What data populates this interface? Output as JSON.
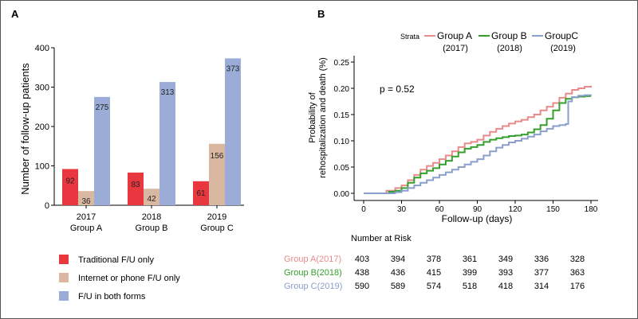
{
  "panel_a": {
    "label": "A",
    "chart_data": {
      "type": "bar",
      "ylabel": "Number of follow-up patients",
      "ylim": [
        0,
        400
      ],
      "yticks": [
        0,
        100,
        200,
        300,
        400
      ],
      "categories": [
        {
          "line1": "2017",
          "line2": "Group A"
        },
        {
          "line1": "2018",
          "line2": "Group B"
        },
        {
          "line1": "2019",
          "line2": "Group C"
        }
      ],
      "series": [
        {
          "name": "Traditional F/U only",
          "color": "#e8373f",
          "values": [
            92,
            83,
            61
          ]
        },
        {
          "name": "Internet or phone F/U only",
          "color": "#d9b8a2",
          "values": [
            36,
            42,
            156
          ]
        },
        {
          "name": "F/U in both forms",
          "color": "#9badd6",
          "values": [
            275,
            313,
            373
          ]
        }
      ],
      "legend": [
        {
          "label": "Traditional F/U only",
          "color": "#e8373f"
        },
        {
          "label": "Internet or phone F/U only",
          "color": "#d9b8a2"
        },
        {
          "label": "F/U in both forms",
          "color": "#9badd6"
        }
      ]
    }
  },
  "panel_b": {
    "label": "B",
    "chart_data": {
      "type": "line",
      "ylabel_line1": "Probability of",
      "ylabel_line2": "rehospitalization and death (%)",
      "xlabel": "Follow-up (days)",
      "xlim": [
        0,
        180
      ],
      "ylim": [
        0,
        0.25
      ],
      "xticks": [
        "0",
        "30",
        "60",
        "90",
        "120",
        "150",
        "180"
      ],
      "yticks": [
        "0.00",
        "0.05",
        "0.10",
        "0.15",
        "0.20",
        "0.25"
      ],
      "annotation": "p = 0.52",
      "strata_title": "Strata",
      "strata": [
        {
          "name": "Group A",
          "year": "(2017)",
          "color": "#e88a8a"
        },
        {
          "name": "Group B",
          "year": "(2018)",
          "color": "#33a02c"
        },
        {
          "name": "GroupC",
          "year": "(2019)",
          "color": "#8a9fcc"
        }
      ],
      "series": [
        {
          "name": "Group A (2017)",
          "color": "#e88a8a",
          "x": [
            0,
            12,
            18,
            25,
            30,
            35,
            40,
            45,
            50,
            55,
            60,
            65,
            70,
            75,
            80,
            85,
            90,
            95,
            100,
            105,
            110,
            115,
            120,
            125,
            130,
            135,
            140,
            145,
            150,
            155,
            160,
            165,
            170,
            175,
            180
          ],
          "y": [
            0,
            0,
            0.005,
            0.01,
            0.015,
            0.025,
            0.035,
            0.045,
            0.052,
            0.058,
            0.065,
            0.072,
            0.08,
            0.088,
            0.095,
            0.098,
            0.102,
            0.11,
            0.117,
            0.123,
            0.128,
            0.133,
            0.137,
            0.14,
            0.145,
            0.15,
            0.158,
            0.165,
            0.172,
            0.182,
            0.19,
            0.197,
            0.2,
            0.203,
            0.205
          ]
        },
        {
          "name": "Group B (2018)",
          "color": "#33a02c",
          "x": [
            0,
            15,
            20,
            25,
            30,
            35,
            40,
            45,
            50,
            55,
            60,
            65,
            70,
            75,
            80,
            85,
            90,
            95,
            100,
            105,
            110,
            115,
            120,
            125,
            130,
            135,
            140,
            145,
            150,
            155,
            160,
            165,
            170,
            175,
            180
          ],
          "y": [
            0,
            0,
            0.003,
            0.005,
            0.01,
            0.02,
            0.03,
            0.038,
            0.043,
            0.048,
            0.055,
            0.062,
            0.07,
            0.078,
            0.085,
            0.088,
            0.092,
            0.098,
            0.102,
            0.105,
            0.107,
            0.109,
            0.11,
            0.112,
            0.116,
            0.122,
            0.13,
            0.142,
            0.158,
            0.172,
            0.18,
            0.183,
            0.184,
            0.185,
            0.185
          ]
        },
        {
          "name": "Group C (2019)",
          "color": "#8a9fcc",
          "x": [
            0,
            20,
            25,
            30,
            35,
            40,
            45,
            50,
            55,
            60,
            65,
            70,
            75,
            80,
            85,
            90,
            95,
            100,
            105,
            110,
            115,
            120,
            125,
            130,
            135,
            140,
            145,
            150,
            155,
            160,
            162,
            165,
            170,
            175,
            180
          ],
          "y": [
            0,
            0,
            0.002,
            0.005,
            0.01,
            0.015,
            0.02,
            0.025,
            0.03,
            0.035,
            0.04,
            0.045,
            0.05,
            0.055,
            0.06,
            0.065,
            0.072,
            0.08,
            0.087,
            0.092,
            0.097,
            0.1,
            0.104,
            0.108,
            0.112,
            0.118,
            0.123,
            0.128,
            0.13,
            0.132,
            0.175,
            0.183,
            0.186,
            0.187,
            0.188
          ]
        }
      ]
    },
    "risk_table": {
      "title": "Number at Risk",
      "rows": [
        {
          "label": "Group   A(2017)",
          "color": "#e88a8a",
          "values": [
            "403",
            "394",
            "378",
            "361",
            "349",
            "336",
            "328"
          ]
        },
        {
          "label": "Group   B(2018)",
          "color": "#33a02c",
          "values": [
            "438",
            "436",
            "415",
            "399",
            "393",
            "377",
            "363"
          ]
        },
        {
          "label": "Group   C(2019)",
          "color": "#8a9fcc",
          "values": [
            "590",
            "589",
            "574",
            "518",
            "418",
            "314",
            "176"
          ]
        }
      ]
    }
  }
}
